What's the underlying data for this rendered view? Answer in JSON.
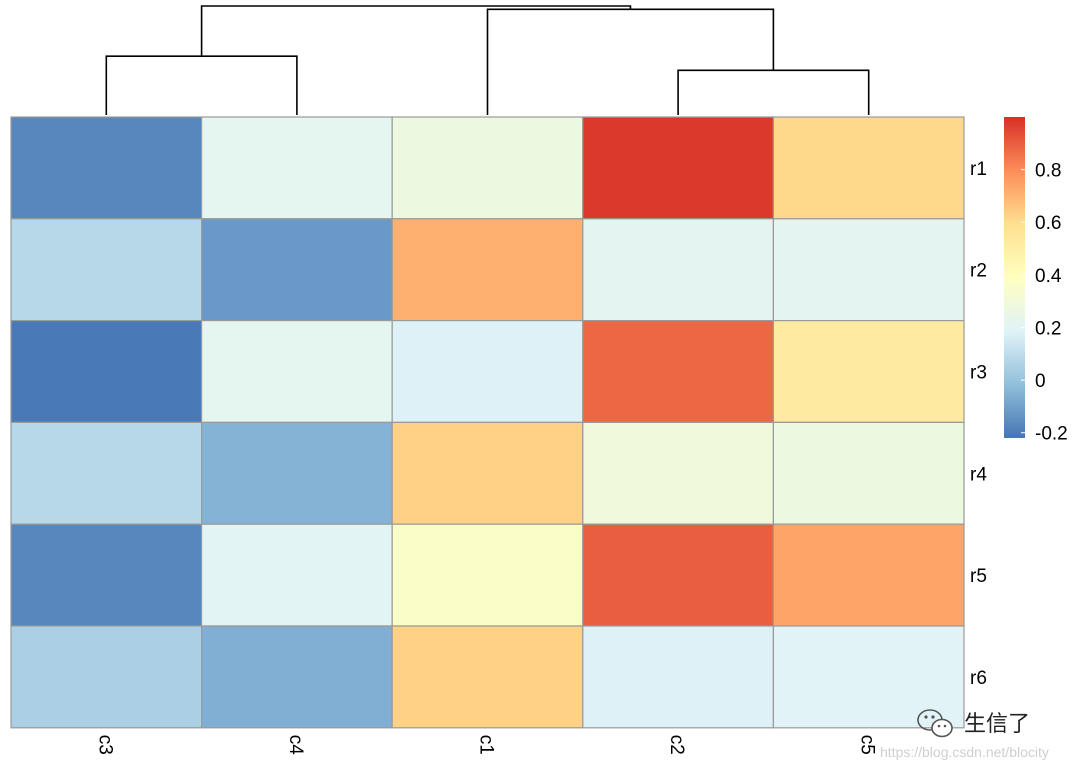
{
  "chart_data": {
    "type": "heatmap",
    "title": "",
    "xlabel": "",
    "ylabel": "",
    "columns": [
      "c3",
      "c4",
      "c1",
      "c2",
      "c5"
    ],
    "rows": [
      "r1",
      "r2",
      "r3",
      "r4",
      "r5",
      "r6"
    ],
    "values": [
      [
        -0.17,
        0.22,
        0.27,
        0.98,
        0.61
      ],
      [
        0.08,
        -0.12,
        0.71,
        0.21,
        0.21
      ],
      [
        -0.21,
        0.22,
        0.18,
        0.88,
        0.52
      ],
      [
        0.08,
        -0.05,
        0.63,
        0.29,
        0.27
      ],
      [
        -0.17,
        0.2,
        0.36,
        0.9,
        0.74
      ],
      [
        0.05,
        -0.06,
        0.63,
        0.18,
        0.19
      ]
    ],
    "colorbar": {
      "ticks": [
        "0.8",
        "0.6",
        "0.4",
        "0.2",
        "0",
        "-0.2"
      ],
      "tick_values": [
        0.8,
        0.6,
        0.4,
        0.2,
        0,
        -0.2
      ],
      "range": [
        -0.22,
        1.0
      ],
      "colors": [
        "#4575b4",
        "#91bfdb",
        "#e0f3f8",
        "#ffffbf",
        "#fee090",
        "#fc8d59",
        "#d73027"
      ]
    },
    "column_dendrogram": {
      "leaves": [
        "c3",
        "c4",
        "c1",
        "c2",
        "c5"
      ],
      "merges": [
        {
          "left": "c2",
          "right": "c5",
          "height": 0.41
        },
        {
          "left": "c3",
          "right": "c4",
          "height": 0.54
        },
        {
          "left": "c1",
          "right": "c2+c5",
          "height": 0.97
        },
        {
          "left": "c3+c4",
          "right": "c1+c2+c5",
          "height": 1.0
        }
      ]
    }
  },
  "watermark": {
    "text": "生信了",
    "url": "https://blog.csdn.net/blocity",
    "icon": "wechat-icon"
  }
}
